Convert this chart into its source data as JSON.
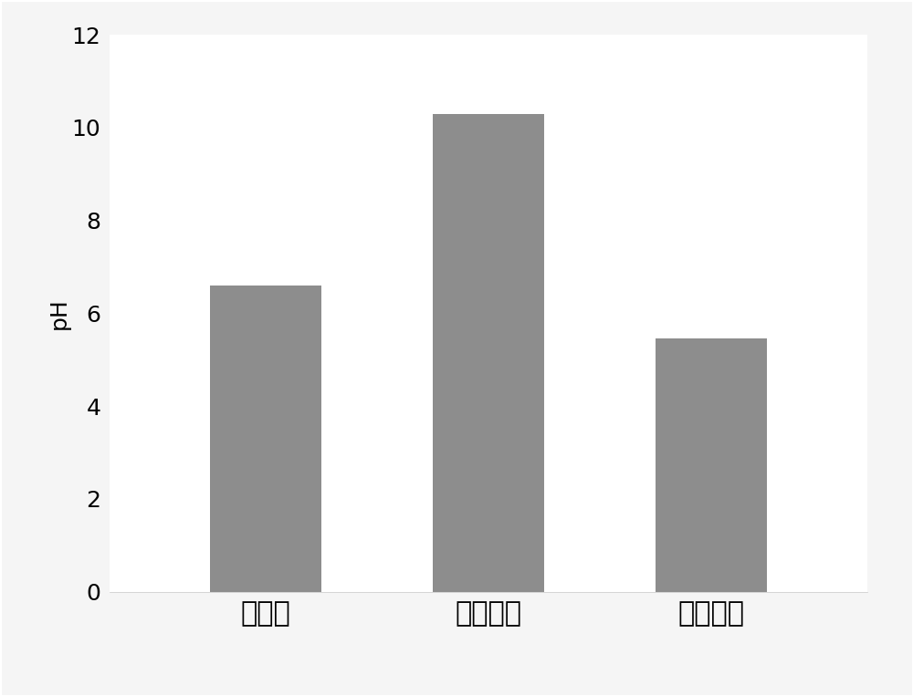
{
  "categories": [
    "钓石膏",
    "黄磷矿渣",
    "泥炭藓土"
  ],
  "values": [
    6.6,
    10.3,
    5.45
  ],
  "bar_color": "#8d8d8d",
  "bar_width": 0.5,
  "ylabel": "pH",
  "ylim": [
    0,
    12
  ],
  "yticks": [
    0,
    2,
    4,
    6,
    8,
    10,
    12
  ],
  "background_color": "#f5f5f5",
  "plot_bg_color": "#ffffff",
  "ylabel_fontsize": 18,
  "tick_fontsize": 18,
  "xlabel_fontsize": 22,
  "grid_color": "#c8c8c8",
  "border_color": "#cccccc"
}
